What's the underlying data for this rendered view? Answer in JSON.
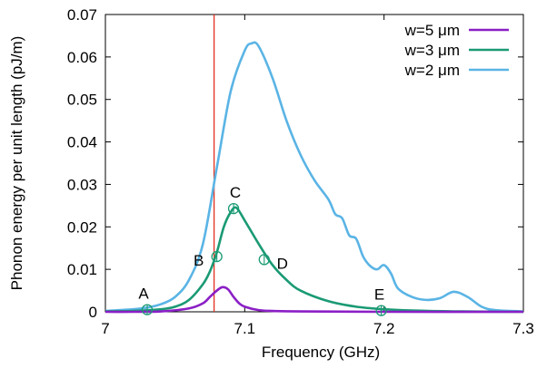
{
  "chart_data": {
    "type": "line",
    "title": "",
    "xlabel": "Frequency (GHz)",
    "ylabel": "Phonon energy per unit length (pJ/m)",
    "xlim": [
      7.0,
      7.3
    ],
    "ylim": [
      0,
      0.07
    ],
    "x_ticks": [
      7,
      7.1,
      7.2,
      7.3
    ],
    "x_tick_labels": [
      "7",
      "7.1",
      "7.2",
      "7.3"
    ],
    "y_ticks": [
      0,
      0.01,
      0.02,
      0.03,
      0.04,
      0.05,
      0.06,
      0.07
    ],
    "y_tick_labels": [
      "0",
      "0.01",
      "0.02",
      "0.03",
      "0.04",
      "0.05",
      "0.06",
      "0.07"
    ],
    "grid": false,
    "legend_position": "top-right",
    "vertical_line": {
      "x": 7.078,
      "color": "#e0301e"
    },
    "series": [
      {
        "name": "w=5 μm",
        "color": "#8b1fc6",
        "x": [
          7.0,
          7.02,
          7.04,
          7.06,
          7.07,
          7.075,
          7.08,
          7.084,
          7.088,
          7.092,
          7.096,
          7.1,
          7.11,
          7.12,
          7.14,
          7.2,
          7.3
        ],
        "y": [
          0.0,
          0.0,
          0.0001,
          0.0008,
          0.002,
          0.0035,
          0.005,
          0.0058,
          0.0053,
          0.0035,
          0.002,
          0.0012,
          0.0004,
          0.0002,
          0.0001,
          0.0,
          0.0
        ]
      },
      {
        "name": "w=3 μm",
        "color": "#1a9a74",
        "x": [
          7.0,
          7.02,
          7.04,
          7.05,
          7.06,
          7.07,
          7.075,
          7.08,
          7.085,
          7.09,
          7.094,
          7.1,
          7.11,
          7.12,
          7.13,
          7.14,
          7.16,
          7.18,
          7.2,
          7.22,
          7.25,
          7.3
        ],
        "y": [
          0.0001,
          0.0002,
          0.0006,
          0.0012,
          0.0028,
          0.0065,
          0.0095,
          0.014,
          0.02,
          0.0235,
          0.0245,
          0.0215,
          0.016,
          0.011,
          0.0075,
          0.005,
          0.0025,
          0.0012,
          0.0006,
          0.0003,
          0.0001,
          0.0
        ]
      },
      {
        "name": "w=2 μm",
        "color": "#5ab4e5",
        "x": [
          7.0,
          7.02,
          7.03,
          7.04,
          7.05,
          7.06,
          7.07,
          7.08,
          7.09,
          7.1,
          7.105,
          7.11,
          7.12,
          7.13,
          7.14,
          7.15,
          7.16,
          7.165,
          7.17,
          7.175,
          7.18,
          7.185,
          7.19,
          7.195,
          7.2,
          7.205,
          7.21,
          7.22,
          7.23,
          7.24,
          7.25,
          7.26,
          7.27,
          7.28,
          7.3
        ],
        "y": [
          0.0002,
          0.0006,
          0.001,
          0.0018,
          0.0035,
          0.0075,
          0.016,
          0.034,
          0.052,
          0.0615,
          0.0632,
          0.0625,
          0.055,
          0.045,
          0.037,
          0.031,
          0.0265,
          0.023,
          0.022,
          0.018,
          0.0172,
          0.013,
          0.0108,
          0.01,
          0.011,
          0.009,
          0.0055,
          0.0035,
          0.0028,
          0.0032,
          0.0047,
          0.0035,
          0.0012,
          0.0004,
          0.0001
        ]
      }
    ],
    "markers": [
      {
        "label": "A",
        "x": 7.03,
        "y": 0.0005,
        "label_dx": -4,
        "label_dy": -18
      },
      {
        "label": "B",
        "x": 7.08,
        "y": 0.013,
        "label_dx": -20,
        "label_dy": 4
      },
      {
        "label": "C",
        "x": 7.092,
        "y": 0.0243,
        "label_dx": 2,
        "label_dy": -18
      },
      {
        "label": "D",
        "x": 7.114,
        "y": 0.0123,
        "label_dx": 20,
        "label_dy": 4
      },
      {
        "label": "E",
        "x": 7.198,
        "y": 0.0003,
        "label_dx": -2,
        "label_dy": -18
      }
    ]
  }
}
